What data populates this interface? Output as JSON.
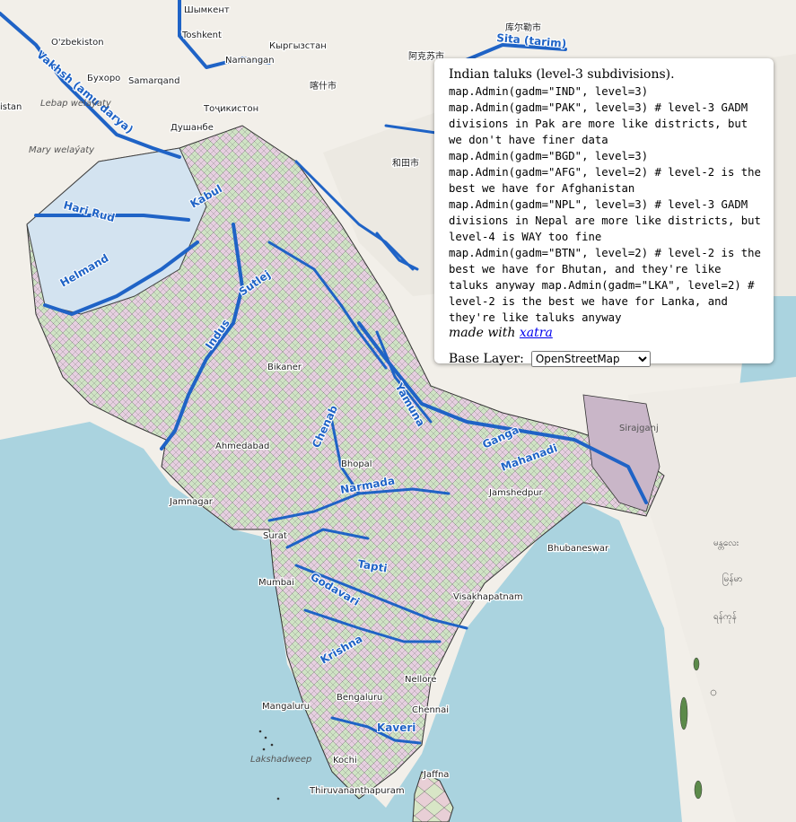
{
  "map": {
    "place_labels": [
      "Toshkent",
      "Шымкент",
      "O'zbekiston",
      "Namangan",
      "Кыргызстан",
      "Буxоро",
      "Samarqand",
      "Тоҷикистон",
      "Душанбе",
      "阿克苏市",
      "库尔勒市",
      "喀什市",
      "和田市",
      "istan",
      "Lebap welaýaty",
      "Mary welaýaty",
      "Jamnagar",
      "Surat",
      "Mumbai",
      "Bhubaneswar",
      "Visakhapatnam",
      "Nellore",
      "Chennai",
      "Kochi",
      "Thiruvananthapuram",
      "Jaffna",
      "Bengaluru",
      "Mangaluru",
      "Lakshadweep",
      "Bikaner",
      "Ahmedabad",
      "Bhopal",
      "Jamshedpur",
      "ရန်ကုန်",
      "မန္တလေး",
      "မြန်မာ",
      "Sirajganj"
    ],
    "river_labels": [
      "Vakhsh (amu darya)",
      "Sita (tarim)",
      "Hari Rud",
      "Kabul",
      "Helmand",
      "Indus",
      "Sutlej",
      "Chenab",
      "Ganga",
      "Yamuna",
      "Godavari",
      "Krishna",
      "Kaveri",
      "Narmada",
      "Tapti",
      "Mahanadi"
    ],
    "colors": {
      "water": "#aad3df",
      "land": "#f2efe9",
      "river": "#1f63c6",
      "border": "#555555"
    }
  },
  "panel": {
    "title": "Indian taluks (level-3 subdivisions).",
    "code": "map.Admin(gadm=\"IND\", level=3)\nmap.Admin(gadm=\"PAK\", level=3) # level-3 GADM divisions in Pak are more like districts, but we don't have finer data\nmap.Admin(gadm=\"BGD\", level=3)\nmap.Admin(gadm=\"AFG\", level=2) # level-2 is the best we have for Afghanistan\nmap.Admin(gadm=\"NPL\", level=3) # level-3 GADM divisions in Nepal are more like districts, but level-4 is WAY too fine\nmap.Admin(gadm=\"BTN\", level=2) # level-2 is the best we have for Bhutan, and they're like taluks anyway map.Admin(gadm=\"LKA\", level=2) # level-2 is the best we have for Lanka, and they're like taluks anyway",
    "made_with_prefix": "made with",
    "made_with_link": "xatra",
    "base_layer_label": "Base Layer:",
    "base_layer_value": "OpenStreetMap",
    "base_layer_options": [
      "OpenStreetMap"
    ]
  }
}
